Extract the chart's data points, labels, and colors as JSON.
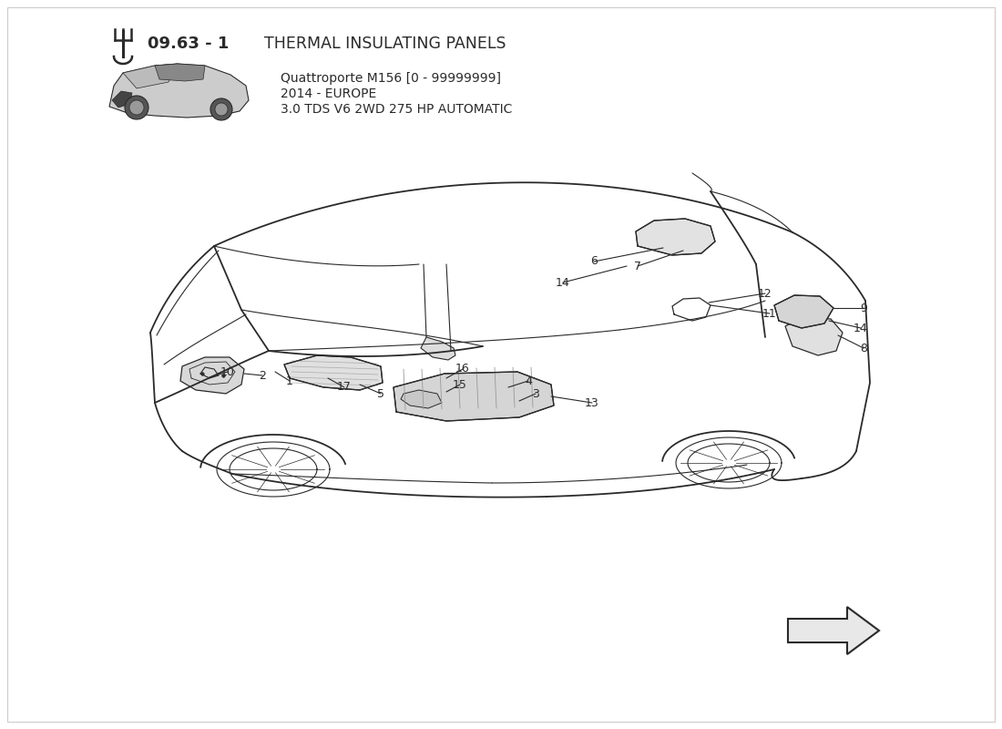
{
  "title_number": "09.63 - 1",
  "title_bold": "09.63 - 1",
  "title_text": "THERMAL INSULATING PANELS",
  "car_model": "Quattroporte M156 [0 - 99999999]",
  "car_year": "2014 - EUROPE",
  "car_spec": "3.0 TDS V6 2WD 275 HP AUTOMATIC",
  "bg_color": "#ffffff",
  "line_color": "#2a2a2a",
  "thin_color": "#3a3a3a"
}
